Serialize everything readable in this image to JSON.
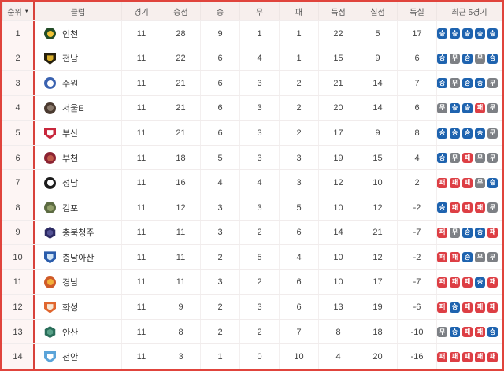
{
  "colors": {
    "outer_border": "#e0443c",
    "header_bg": "#f7efed",
    "rank_col_bg": "#fdf5f4",
    "club_divider": "#d8423b",
    "badge_win": "#1e63af",
    "badge_draw": "#7d8085",
    "badge_loss": "#dd3e44"
  },
  "table": {
    "headers": [
      "순위",
      "클럽",
      "경기",
      "승점",
      "승",
      "무",
      "패",
      "득점",
      "실점",
      "득실",
      "최근 5경기"
    ],
    "sort_icon": "▼",
    "badge_map": {
      "W": {
        "label": "승",
        "color": "#1e63af"
      },
      "D": {
        "label": "무",
        "color": "#7d8085"
      },
      "L": {
        "label": "패",
        "color": "#dd3e44"
      }
    },
    "rows": [
      {
        "rank": "1",
        "club": "인천",
        "gp": "11",
        "pts": "28",
        "w": "9",
        "d": "1",
        "l": "1",
        "gf": "22",
        "ga": "5",
        "gd": "17",
        "recent": [
          "W",
          "W",
          "W",
          "W",
          "W"
        ],
        "logo": {
          "shape": "circle",
          "c1": "#234d27",
          "c2": "#f2c438"
        }
      },
      {
        "rank": "2",
        "club": "전남",
        "gp": "11",
        "pts": "22",
        "w": "6",
        "d": "4",
        "l": "1",
        "gf": "15",
        "ga": "9",
        "gd": "6",
        "recent": [
          "W",
          "D",
          "W",
          "D",
          "W"
        ],
        "logo": {
          "shape": "shield",
          "c1": "#26200e",
          "c2": "#d9af2b"
        }
      },
      {
        "rank": "3",
        "club": "수원",
        "gp": "11",
        "pts": "21",
        "w": "6",
        "d": "3",
        "l": "2",
        "gf": "21",
        "ga": "14",
        "gd": "7",
        "recent": [
          "W",
          "D",
          "W",
          "W",
          "D"
        ],
        "logo": {
          "shape": "circle",
          "c1": "#3a62b0",
          "c2": "#ffffff"
        }
      },
      {
        "rank": "4",
        "club": "서울E",
        "gp": "11",
        "pts": "21",
        "w": "6",
        "d": "3",
        "l": "2",
        "gf": "20",
        "ga": "14",
        "gd": "6",
        "recent": [
          "D",
          "W",
          "W",
          "L",
          "D"
        ],
        "logo": {
          "shape": "circle",
          "c1": "#4a3a30",
          "c2": "#8a7a6c"
        }
      },
      {
        "rank": "5",
        "club": "부산",
        "gp": "11",
        "pts": "21",
        "w": "6",
        "d": "3",
        "l": "2",
        "gf": "17",
        "ga": "9",
        "gd": "8",
        "recent": [
          "W",
          "W",
          "W",
          "W",
          "D"
        ],
        "logo": {
          "shape": "shield",
          "c1": "#c8273c",
          "c2": "#ffffff"
        }
      },
      {
        "rank": "6",
        "club": "부천",
        "gp": "11",
        "pts": "18",
        "w": "5",
        "d": "3",
        "l": "3",
        "gf": "19",
        "ga": "15",
        "gd": "4",
        "recent": [
          "W",
          "D",
          "L",
          "D",
          "D"
        ],
        "logo": {
          "shape": "circle",
          "c1": "#8c2332",
          "c2": "#c05a4a"
        }
      },
      {
        "rank": "7",
        "club": "성남",
        "gp": "11",
        "pts": "16",
        "w": "4",
        "d": "4",
        "l": "3",
        "gf": "12",
        "ga": "10",
        "gd": "2",
        "recent": [
          "L",
          "L",
          "L",
          "D",
          "W"
        ],
        "logo": {
          "shape": "circle",
          "c1": "#1c1c1c",
          "c2": "#ffffff"
        }
      },
      {
        "rank": "8",
        "club": "김포",
        "gp": "11",
        "pts": "12",
        "w": "3",
        "d": "3",
        "l": "5",
        "gf": "10",
        "ga": "12",
        "gd": "-2",
        "recent": [
          "W",
          "L",
          "L",
          "L",
          "D"
        ],
        "logo": {
          "shape": "circle",
          "c1": "#5c6b42",
          "c2": "#93a06b"
        }
      },
      {
        "rank": "9",
        "club": "충북청주",
        "gp": "11",
        "pts": "11",
        "w": "3",
        "d": "2",
        "l": "6",
        "gf": "14",
        "ga": "21",
        "gd": "-7",
        "recent": [
          "L",
          "D",
          "W",
          "W",
          "L"
        ],
        "logo": {
          "shape": "hex",
          "c1": "#2c2a63",
          "c2": "#535294"
        }
      },
      {
        "rank": "10",
        "club": "충남아산",
        "gp": "11",
        "pts": "11",
        "w": "2",
        "d": "5",
        "l": "4",
        "gf": "10",
        "ga": "12",
        "gd": "-2",
        "recent": [
          "L",
          "L",
          "W",
          "D",
          "D"
        ],
        "logo": {
          "shape": "shield",
          "c1": "#2a5cab",
          "c2": "#cfe3f5"
        }
      },
      {
        "rank": "11",
        "club": "경남",
        "gp": "11",
        "pts": "11",
        "w": "3",
        "d": "2",
        "l": "6",
        "gf": "10",
        "ga": "17",
        "gd": "-7",
        "recent": [
          "L",
          "L",
          "L",
          "W",
          "L"
        ],
        "logo": {
          "shape": "circle",
          "c1": "#cf5a28",
          "c2": "#f2b03a"
        }
      },
      {
        "rank": "12",
        "club": "화성",
        "gp": "11",
        "pts": "9",
        "w": "2",
        "d": "3",
        "l": "6",
        "gf": "13",
        "ga": "19",
        "gd": "-6",
        "recent": [
          "L",
          "W",
          "L",
          "L",
          "L"
        ],
        "logo": {
          "shape": "shield",
          "c1": "#e0662e",
          "c2": "#f7e6d2"
        }
      },
      {
        "rank": "13",
        "club": "안산",
        "gp": "11",
        "pts": "8",
        "w": "2",
        "d": "2",
        "l": "7",
        "gf": "8",
        "ga": "18",
        "gd": "-10",
        "recent": [
          "D",
          "W",
          "L",
          "L",
          "W"
        ],
        "logo": {
          "shape": "hex",
          "c1": "#2a6e5a",
          "c2": "#58a188"
        }
      },
      {
        "rank": "14",
        "club": "천안",
        "gp": "11",
        "pts": "3",
        "w": "1",
        "d": "0",
        "l": "10",
        "gf": "4",
        "ga": "20",
        "gd": "-16",
        "recent": [
          "L",
          "L",
          "L",
          "L",
          "L"
        ],
        "logo": {
          "shape": "shield",
          "c1": "#5ba4d9",
          "c2": "#ffffff"
        }
      }
    ]
  }
}
